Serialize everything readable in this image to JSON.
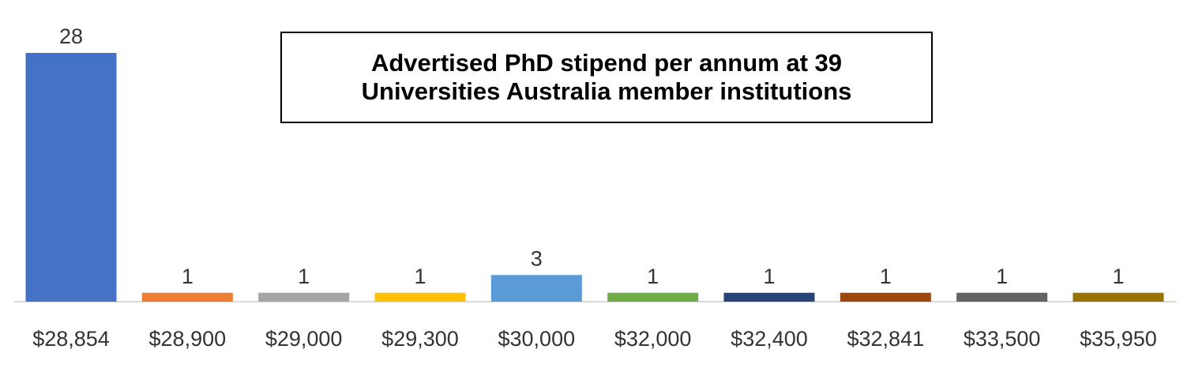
{
  "chart_data": {
    "type": "bar",
    "title": "Advertised PhD stipend per annum at 39 Universities Australia member institutions",
    "categories": [
      "$28,854",
      "$28,900",
      "$29,000",
      "$29,300",
      "$30,000",
      "$32,000",
      "$32,400",
      "$32,841",
      "$33,500",
      "$35,950"
    ],
    "values": [
      28,
      1,
      1,
      1,
      3,
      1,
      1,
      1,
      1,
      1
    ],
    "colors": [
      "#4472c4",
      "#ed7d31",
      "#a5a5a5",
      "#ffc000",
      "#5b9bd5",
      "#70ad47",
      "#264478",
      "#9e480e",
      "#636363",
      "#997300"
    ],
    "grid": false
  }
}
